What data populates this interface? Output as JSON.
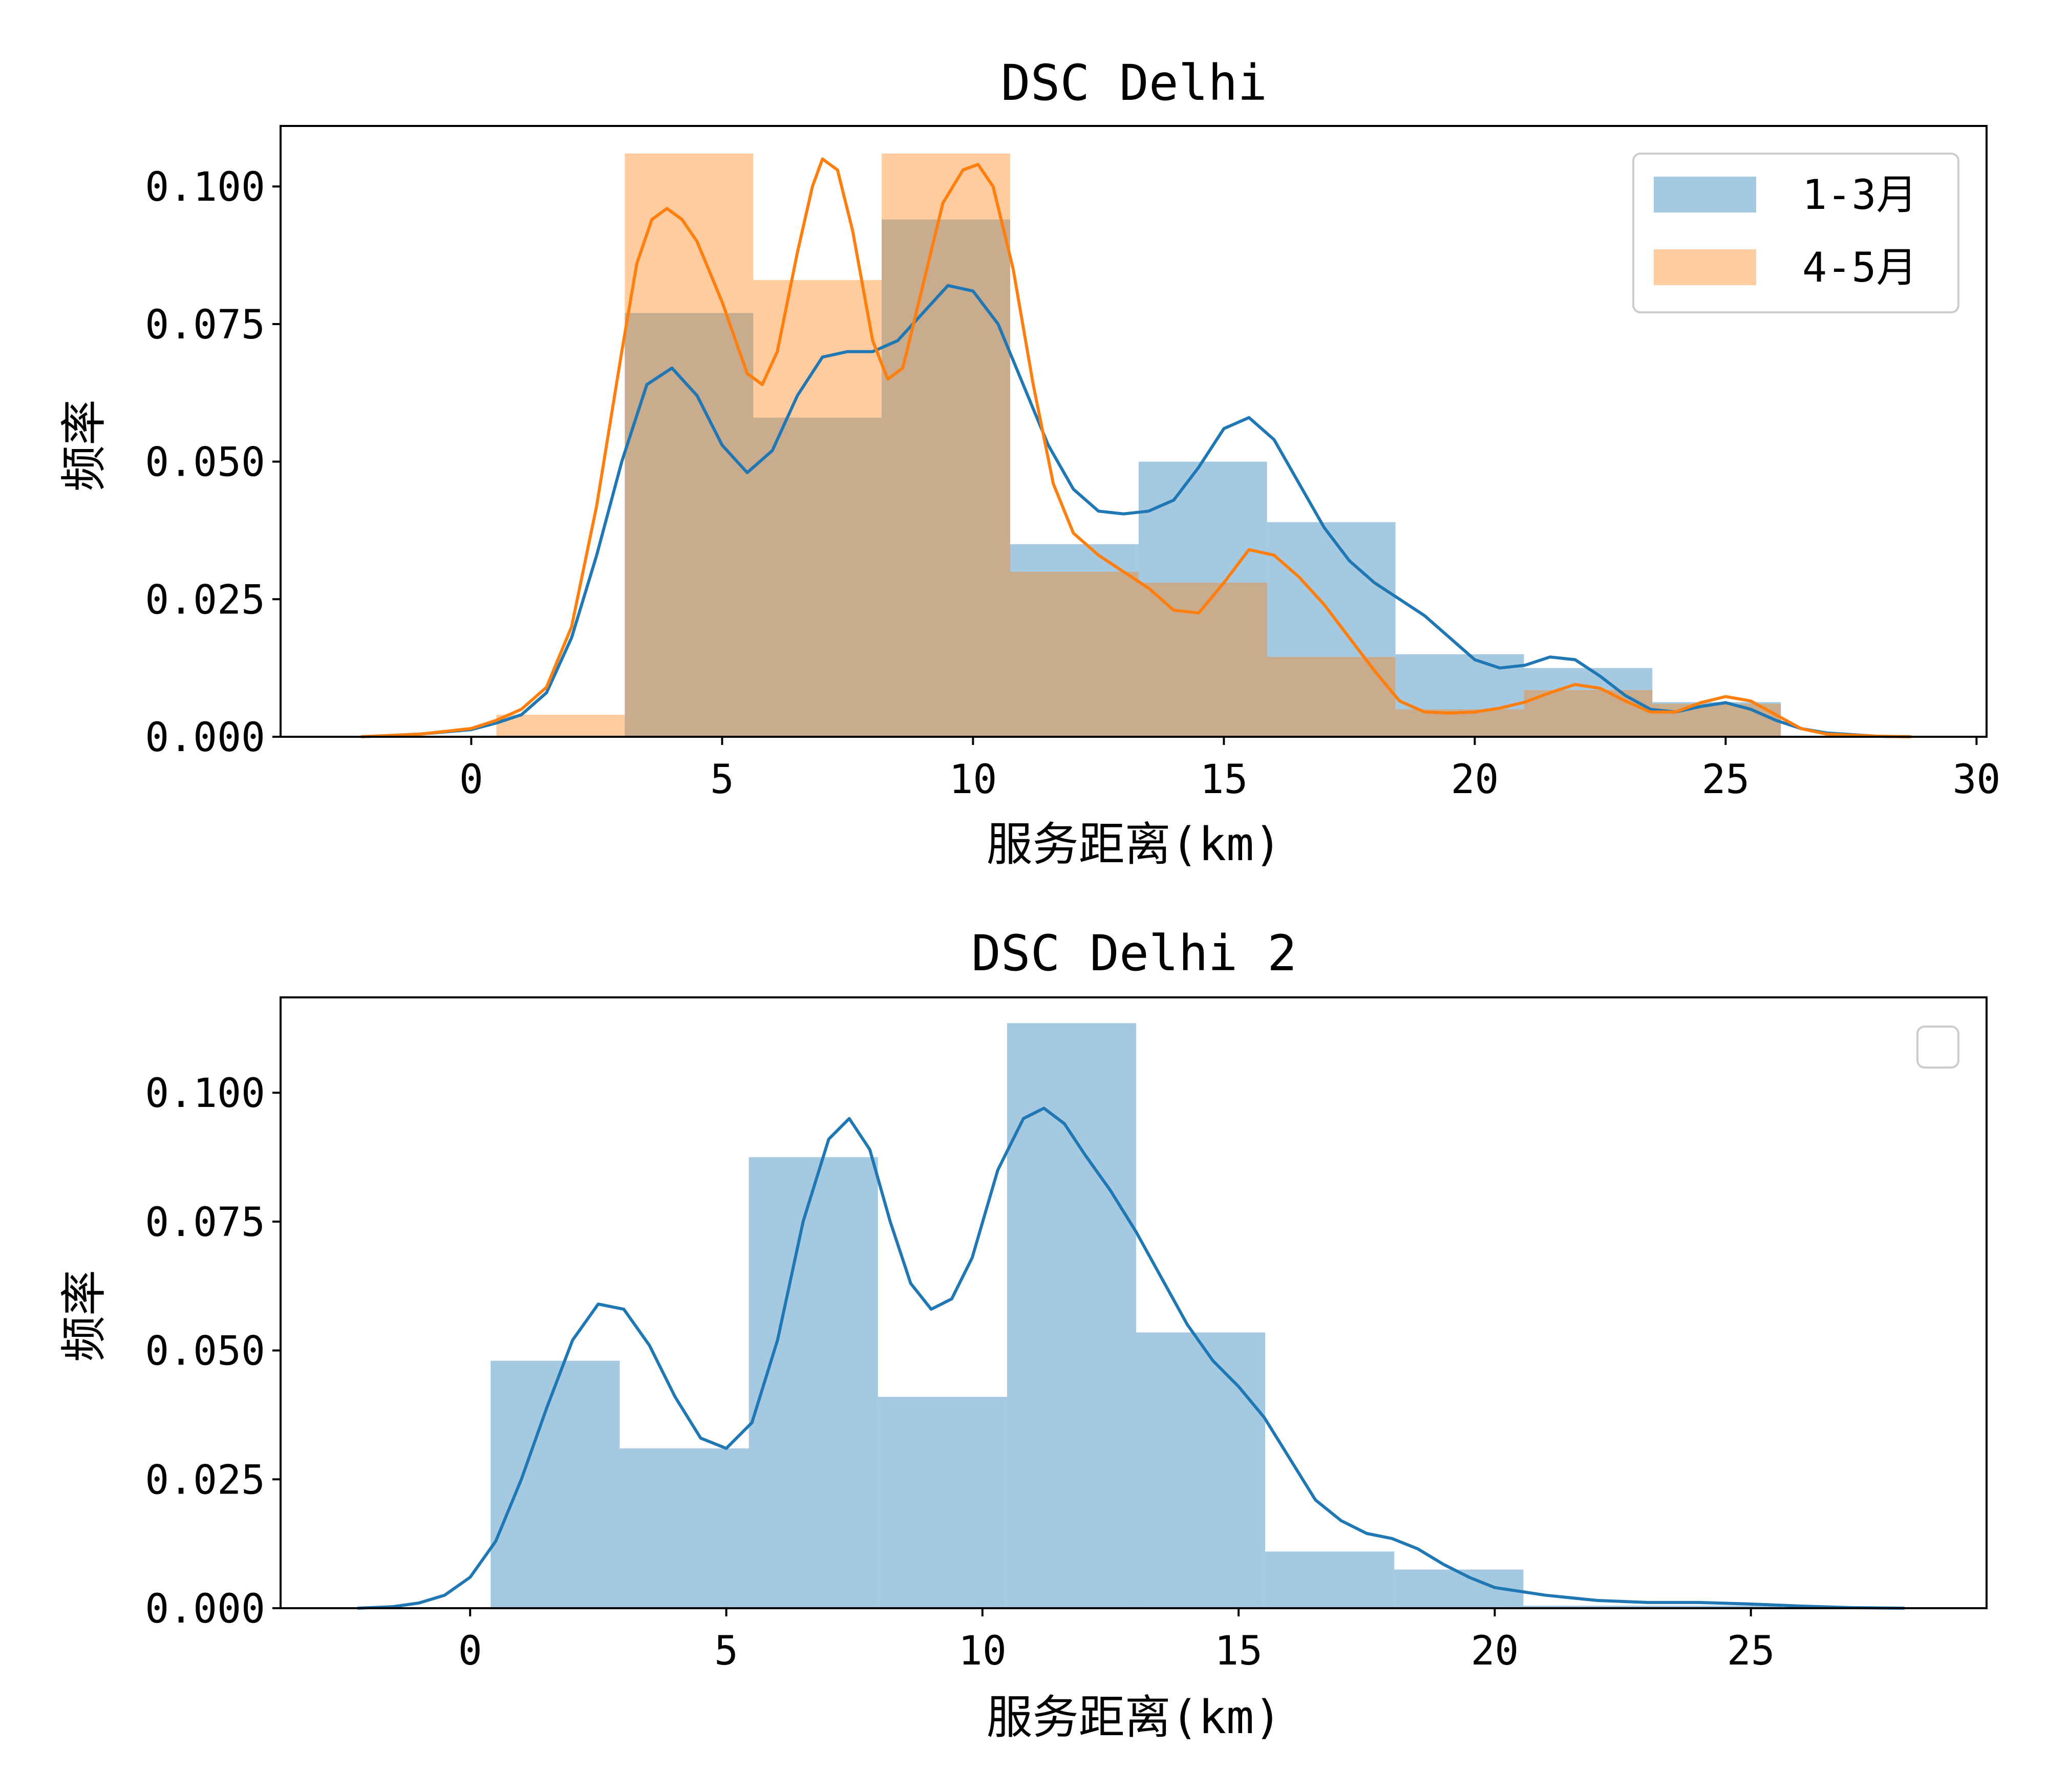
{
  "colors": {
    "series1": "#1f77b4",
    "series2": "#ff7f0e",
    "frame": "#000000",
    "legend_border": "#cccccc"
  },
  "chart_data": [
    {
      "type": "histogram+kde",
      "title": "DSC Delhi",
      "xlabel": "服务距离(km)",
      "ylabel": "频率",
      "xlim": [
        -3.8,
        30.2
      ],
      "ylim": [
        0,
        0.111
      ],
      "xticks": [
        0,
        5,
        10,
        15,
        20,
        25,
        30
      ],
      "yticks": [
        0.0,
        0.025,
        0.05,
        0.075,
        0.1
      ],
      "ytick_labels": [
        "0.000",
        "0.025",
        "0.050",
        "0.075",
        "0.100"
      ],
      "legend": {
        "position": "top-right",
        "entries": [
          "1-3月",
          "4-5月"
        ]
      },
      "series": [
        {
          "name": "1-3月",
          "bins": [
            {
              "x0": 0.5,
              "x1": 3.06,
              "value": 0.0
            },
            {
              "x0": 3.06,
              "x1": 5.62,
              "value": 0.077
            },
            {
              "x0": 5.62,
              "x1": 8.18,
              "value": 0.058
            },
            {
              "x0": 8.18,
              "x1": 10.74,
              "value": 0.094
            },
            {
              "x0": 10.74,
              "x1": 13.3,
              "value": 0.035
            },
            {
              "x0": 13.3,
              "x1": 15.86,
              "value": 0.05
            },
            {
              "x0": 15.86,
              "x1": 18.42,
              "value": 0.039
            },
            {
              "x0": 18.42,
              "x1": 20.98,
              "value": 0.015
            },
            {
              "x0": 20.98,
              "x1": 23.54,
              "value": 0.0125
            },
            {
              "x0": 23.54,
              "x1": 26.1,
              "value": 0.0063
            }
          ],
          "kde": [
            [
              -2.2,
              0.0
            ],
            [
              -1.0,
              0.0005
            ],
            [
              0.0,
              0.0013
            ],
            [
              0.5,
              0.0025
            ],
            [
              1.0,
              0.004
            ],
            [
              1.5,
              0.008
            ],
            [
              2.0,
              0.018
            ],
            [
              2.5,
              0.033
            ],
            [
              3.0,
              0.05
            ],
            [
              3.5,
              0.064
            ],
            [
              4.0,
              0.067
            ],
            [
              4.5,
              0.062
            ],
            [
              5.0,
              0.053
            ],
            [
              5.5,
              0.048
            ],
            [
              6.0,
              0.052
            ],
            [
              6.5,
              0.062
            ],
            [
              7.0,
              0.069
            ],
            [
              7.5,
              0.07
            ],
            [
              8.0,
              0.07
            ],
            [
              8.5,
              0.072
            ],
            [
              9.0,
              0.077
            ],
            [
              9.5,
              0.082
            ],
            [
              10.0,
              0.081
            ],
            [
              10.5,
              0.075
            ],
            [
              11.0,
              0.064
            ],
            [
              11.5,
              0.053
            ],
            [
              12.0,
              0.045
            ],
            [
              12.5,
              0.041
            ],
            [
              13.0,
              0.0405
            ],
            [
              13.5,
              0.041
            ],
            [
              14.0,
              0.043
            ],
            [
              14.5,
              0.049
            ],
            [
              15.0,
              0.056
            ],
            [
              15.5,
              0.058
            ],
            [
              16.0,
              0.054
            ],
            [
              16.5,
              0.046
            ],
            [
              17.0,
              0.038
            ],
            [
              17.5,
              0.032
            ],
            [
              18.0,
              0.028
            ],
            [
              18.5,
              0.025
            ],
            [
              19.0,
              0.022
            ],
            [
              19.5,
              0.018
            ],
            [
              20.0,
              0.014
            ],
            [
              20.5,
              0.0125
            ],
            [
              21.0,
              0.013
            ],
            [
              21.5,
              0.0145
            ],
            [
              22.0,
              0.014
            ],
            [
              22.5,
              0.011
            ],
            [
              23.0,
              0.0075
            ],
            [
              23.5,
              0.005
            ],
            [
              24.0,
              0.0045
            ],
            [
              24.5,
              0.0055
            ],
            [
              25.0,
              0.0062
            ],
            [
              25.5,
              0.005
            ],
            [
              26.0,
              0.003
            ],
            [
              26.5,
              0.0015
            ],
            [
              27.0,
              0.0007
            ],
            [
              28.0,
              0.0001
            ],
            [
              28.7,
              0.0
            ]
          ]
        },
        {
          "name": "4-5月",
          "bins": [
            {
              "x0": 0.5,
              "x1": 3.06,
              "value": 0.004
            },
            {
              "x0": 3.06,
              "x1": 5.62,
              "value": 0.106
            },
            {
              "x0": 5.62,
              "x1": 8.18,
              "value": 0.083
            },
            {
              "x0": 8.18,
              "x1": 10.74,
              "value": 0.106
            },
            {
              "x0": 10.74,
              "x1": 13.3,
              "value": 0.03
            },
            {
              "x0": 13.3,
              "x1": 15.86,
              "value": 0.028
            },
            {
              "x0": 15.86,
              "x1": 18.42,
              "value": 0.0145
            },
            {
              "x0": 18.42,
              "x1": 20.98,
              "value": 0.005
            },
            {
              "x0": 20.98,
              "x1": 23.54,
              "value": 0.0085
            },
            {
              "x0": 23.54,
              "x1": 26.1,
              "value": 0.006
            }
          ],
          "kde": [
            [
              -2.2,
              0.0
            ],
            [
              -1.0,
              0.0005
            ],
            [
              0.0,
              0.0015
            ],
            [
              0.5,
              0.003
            ],
            [
              1.0,
              0.005
            ],
            [
              1.5,
              0.009
            ],
            [
              2.0,
              0.02
            ],
            [
              2.5,
              0.042
            ],
            [
              3.0,
              0.07
            ],
            [
              3.3,
              0.086
            ],
            [
              3.6,
              0.094
            ],
            [
              3.9,
              0.096
            ],
            [
              4.2,
              0.094
            ],
            [
              4.5,
              0.09
            ],
            [
              5.0,
              0.079
            ],
            [
              5.5,
              0.066
            ],
            [
              5.8,
              0.064
            ],
            [
              6.1,
              0.07
            ],
            [
              6.5,
              0.088
            ],
            [
              6.8,
              0.1
            ],
            [
              7.0,
              0.105
            ],
            [
              7.3,
              0.103
            ],
            [
              7.6,
              0.092
            ],
            [
              8.0,
              0.072
            ],
            [
              8.3,
              0.065
            ],
            [
              8.6,
              0.067
            ],
            [
              9.0,
              0.082
            ],
            [
              9.4,
              0.097
            ],
            [
              9.8,
              0.103
            ],
            [
              10.1,
              0.104
            ],
            [
              10.4,
              0.1
            ],
            [
              10.8,
              0.085
            ],
            [
              11.2,
              0.064
            ],
            [
              11.6,
              0.046
            ],
            [
              12.0,
              0.037
            ],
            [
              12.5,
              0.033
            ],
            [
              13.0,
              0.03
            ],
            [
              13.5,
              0.027
            ],
            [
              14.0,
              0.023
            ],
            [
              14.5,
              0.0225
            ],
            [
              15.0,
              0.028
            ],
            [
              15.5,
              0.034
            ],
            [
              16.0,
              0.033
            ],
            [
              16.5,
              0.029
            ],
            [
              17.0,
              0.024
            ],
            [
              17.5,
              0.018
            ],
            [
              18.0,
              0.012
            ],
            [
              18.5,
              0.0065
            ],
            [
              19.0,
              0.0045
            ],
            [
              19.5,
              0.0043
            ],
            [
              20.0,
              0.0045
            ],
            [
              20.5,
              0.0052
            ],
            [
              21.0,
              0.0063
            ],
            [
              21.5,
              0.008
            ],
            [
              22.0,
              0.0095
            ],
            [
              22.5,
              0.0088
            ],
            [
              23.0,
              0.0065
            ],
            [
              23.5,
              0.0045
            ],
            [
              24.0,
              0.0045
            ],
            [
              24.5,
              0.0062
            ],
            [
              25.0,
              0.0073
            ],
            [
              25.5,
              0.0065
            ],
            [
              26.0,
              0.004
            ],
            [
              26.5,
              0.0015
            ],
            [
              27.0,
              0.0005
            ],
            [
              28.0,
              0.0001
            ],
            [
              28.7,
              0.0
            ]
          ]
        }
      ]
    },
    {
      "type": "histogram+kde",
      "title": "DSC Delhi 2",
      "xlabel": "服务距离(km)",
      "ylabel": "频率",
      "xlim": [
        -3.7,
        29.6
      ],
      "ylim": [
        0,
        0.1185
      ],
      "xticks": [
        0,
        5,
        10,
        15,
        20,
        25
      ],
      "yticks": [
        0.0,
        0.025,
        0.05,
        0.075,
        0.1
      ],
      "ytick_labels": [
        "0.000",
        "0.025",
        "0.050",
        "0.075",
        "0.100"
      ],
      "legend": {
        "position": "top-right",
        "entries": []
      },
      "series": [
        {
          "bins": [
            {
              "x0": 0.4,
              "x1": 2.92,
              "value": 0.048
            },
            {
              "x0": 2.92,
              "x1": 5.44,
              "value": 0.031
            },
            {
              "x0": 5.44,
              "x1": 7.96,
              "value": 0.0875
            },
            {
              "x0": 7.96,
              "x1": 10.48,
              "value": 0.041
            },
            {
              "x0": 10.48,
              "x1": 13.0,
              "value": 0.1135
            },
            {
              "x0": 13.0,
              "x1": 15.52,
              "value": 0.0535
            },
            {
              "x0": 15.52,
              "x1": 18.04,
              "value": 0.011
            },
            {
              "x0": 18.04,
              "x1": 20.56,
              "value": 0.0075
            },
            {
              "x0": 20.56,
              "x1": 23.08,
              "value": 0.0005
            },
            {
              "x0": 23.08,
              "x1": 25.6,
              "value": 0.0005
            }
          ],
          "kde": [
            [
              -2.2,
              0.0
            ],
            [
              -1.5,
              0.0003
            ],
            [
              -1.0,
              0.001
            ],
            [
              -0.5,
              0.0025
            ],
            [
              0.0,
              0.006
            ],
            [
              0.5,
              0.013
            ],
            [
              1.0,
              0.025
            ],
            [
              1.5,
              0.039
            ],
            [
              2.0,
              0.052
            ],
            [
              2.5,
              0.059
            ],
            [
              3.0,
              0.058
            ],
            [
              3.5,
              0.051
            ],
            [
              4.0,
              0.041
            ],
            [
              4.5,
              0.033
            ],
            [
              5.0,
              0.031
            ],
            [
              5.5,
              0.036
            ],
            [
              6.0,
              0.052
            ],
            [
              6.5,
              0.075
            ],
            [
              7.0,
              0.091
            ],
            [
              7.4,
              0.095
            ],
            [
              7.8,
              0.089
            ],
            [
              8.2,
              0.075
            ],
            [
              8.6,
              0.063
            ],
            [
              9.0,
              0.058
            ],
            [
              9.4,
              0.06
            ],
            [
              9.8,
              0.068
            ],
            [
              10.3,
              0.085
            ],
            [
              10.8,
              0.095
            ],
            [
              11.2,
              0.097
            ],
            [
              11.6,
              0.094
            ],
            [
              12.0,
              0.088
            ],
            [
              12.5,
              0.081
            ],
            [
              13.0,
              0.073
            ],
            [
              13.5,
              0.064
            ],
            [
              14.0,
              0.055
            ],
            [
              14.5,
              0.048
            ],
            [
              15.0,
              0.043
            ],
            [
              15.5,
              0.037
            ],
            [
              16.0,
              0.029
            ],
            [
              16.5,
              0.021
            ],
            [
              17.0,
              0.017
            ],
            [
              17.5,
              0.0145
            ],
            [
              18.0,
              0.0135
            ],
            [
              18.5,
              0.0115
            ],
            [
              19.0,
              0.0085
            ],
            [
              19.5,
              0.006
            ],
            [
              20.0,
              0.004
            ],
            [
              21.0,
              0.0025
            ],
            [
              22.0,
              0.0015
            ],
            [
              23.0,
              0.0011
            ],
            [
              24.0,
              0.0011
            ],
            [
              25.0,
              0.0008
            ],
            [
              26.0,
              0.0004
            ],
            [
              27.0,
              0.0001
            ],
            [
              28.0,
              0.0
            ]
          ]
        }
      ]
    }
  ]
}
